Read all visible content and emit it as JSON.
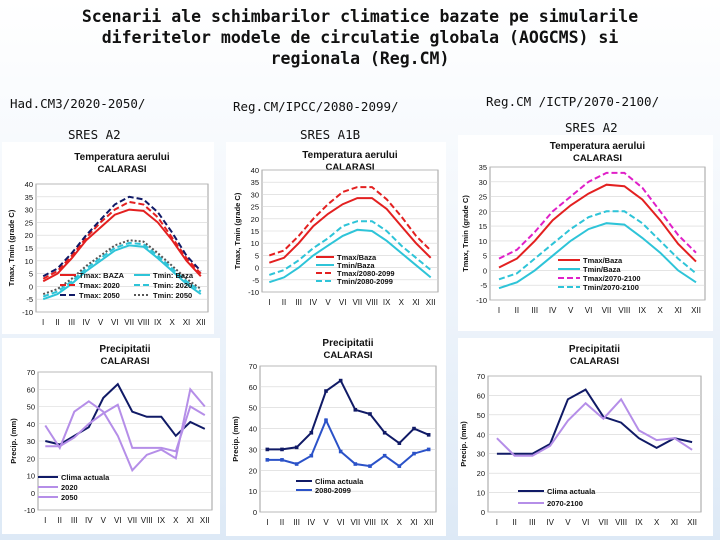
{
  "title_lines": [
    "Scenarii ale schimbarilor climatice bazate pe simularile",
    "diferitelor modele de circulatie globala (AOGCMS) si",
    "regionala (Reg.CM)"
  ],
  "columns": [
    {
      "model": "Had.CM3/2020-2050/",
      "scenario": "SRES A2"
    },
    {
      "model": "Reg.CM/IPCC/2080-2099/",
      "scenario": "SRES A1B"
    },
    {
      "model": "Reg.CM /ICTP/2070-2100/",
      "scenario": "SRES A2"
    }
  ],
  "colors": {
    "red": "#e32020",
    "cyan": "#2ec4d8",
    "navy": "#101a66",
    "blue": "#2b52c8",
    "violet": "#b58ee8",
    "gray": "#555555"
  },
  "chart_data": [
    {
      "type": "line",
      "panel": "temp1",
      "title": "Temperatura aerului",
      "subtitle": "CALARASI",
      "ylabel": "Tmax, Tmin (grade C)",
      "ylim": [
        -10,
        40
      ],
      "yticks": [
        -10,
        -5,
        0,
        5,
        10,
        15,
        20,
        25,
        30,
        35,
        40
      ],
      "categories": [
        "I",
        "II",
        "III",
        "IV",
        "V",
        "VI",
        "VII",
        "VIII",
        "IX",
        "X",
        "XI",
        "XII"
      ],
      "series": [
        {
          "name": "Tmax: BAZA",
          "color": "red",
          "dash": "solid",
          "values": [
            2,
            5,
            11,
            18,
            23,
            28,
            30,
            29.5,
            25,
            18,
            10,
            4
          ]
        },
        {
          "name": "Tmax: 2020",
          "color": "red",
          "dash": "dashed",
          "values": [
            3,
            6,
            12,
            19,
            25,
            30,
            33,
            32,
            27,
            19,
            11,
            5
          ]
        },
        {
          "name": "Tmax: 2050",
          "color": "navy",
          "dash": "dashed",
          "values": [
            4,
            7,
            13,
            20,
            26,
            32,
            35,
            34,
            29,
            21,
            12,
            6
          ]
        },
        {
          "name": "Tmin: Baza",
          "color": "cyan",
          "dash": "solid",
          "values": [
            -5,
            -3,
            1,
            6,
            10,
            14,
            16,
            15.5,
            11,
            6,
            1,
            -3
          ]
        },
        {
          "name": "Tmin: 2020",
          "color": "cyan",
          "dash": "dashed",
          "values": [
            -4,
            -2,
            2,
            7,
            11,
            15,
            17,
            16.5,
            12,
            7,
            2,
            -2
          ]
        },
        {
          "name": "Tmin: 2050",
          "color": "gray",
          "dash": "dotted",
          "values": [
            -3,
            -1,
            3,
            8,
            12,
            16,
            18,
            17.5,
            13,
            8,
            3,
            -1
          ]
        }
      ]
    },
    {
      "type": "line",
      "panel": "temp2",
      "title": "Temperatura aerului",
      "subtitle": "CALARASI",
      "ylabel": "Tmax, Tmin (grade C)",
      "ylim": [
        -10,
        40
      ],
      "yticks": [
        -10,
        -5,
        0,
        5,
        10,
        15,
        20,
        25,
        30,
        35,
        40
      ],
      "categories": [
        "I",
        "II",
        "III",
        "IV",
        "V",
        "VI",
        "VII",
        "VIII",
        "IX",
        "X",
        "XI",
        "XII"
      ],
      "series": [
        {
          "name": "Tmax/Baza",
          "color": "red",
          "dash": "solid",
          "values": [
            2,
            4,
            10,
            17,
            22,
            26,
            28.5,
            28.5,
            24,
            17,
            10,
            4
          ]
        },
        {
          "name": "Tmin/Baza",
          "color": "cyan",
          "dash": "solid",
          "values": [
            -6,
            -4,
            0,
            5,
            9,
            13,
            15.5,
            15,
            11,
            6,
            1,
            -4
          ]
        },
        {
          "name": "Tmax/2080-2099",
          "color": "red",
          "dash": "dashed",
          "values": [
            5,
            7,
            13,
            20,
            26,
            31,
            33,
            33,
            28,
            21,
            13,
            7
          ]
        },
        {
          "name": "Tmin/2080-2099",
          "color": "cyan",
          "dash": "dashed",
          "values": [
            -3,
            -1,
            3,
            8,
            12,
            17,
            19,
            19,
            15,
            9,
            4,
            -1
          ]
        }
      ]
    },
    {
      "type": "line",
      "panel": "temp3",
      "title": "Temperatura aerului",
      "subtitle": "CALARASI",
      "ylabel": "Tmax, Tmin (grade C)",
      "ylim": [
        -10,
        35
      ],
      "yticks": [
        -10,
        -5,
        0,
        5,
        10,
        15,
        20,
        25,
        30,
        35
      ],
      "categories": [
        "I",
        "II",
        "III",
        "IV",
        "V",
        "VI",
        "VII",
        "VIII",
        "IX",
        "X",
        "XI",
        "XII"
      ],
      "series": [
        {
          "name": "Tmax/Baza",
          "color": "red",
          "dash": "solid",
          "values": [
            1,
            4,
            10,
            17,
            22,
            26,
            29,
            28.5,
            24,
            17,
            9,
            3
          ]
        },
        {
          "name": "Tmin/Baza",
          "color": "cyan",
          "dash": "solid",
          "values": [
            -6,
            -4,
            0,
            5,
            10,
            14,
            16,
            15.5,
            11,
            6,
            0,
            -4
          ]
        },
        {
          "name": "Tmax/2070-2100",
          "color": "magenta",
          "dash": "dashed",
          "values": [
            4,
            7,
            13,
            20,
            25,
            30,
            33,
            33,
            28,
            20,
            12,
            6
          ]
        },
        {
          "name": "Tmin/2070-2100",
          "color": "cyan",
          "dash": "dashed",
          "values": [
            -3,
            -1,
            4,
            9,
            14,
            18,
            20,
            20,
            16,
            10,
            4,
            -1
          ]
        }
      ]
    },
    {
      "type": "line",
      "panel": "prec1",
      "title": "Precipitatii",
      "subtitle": "CALARASI",
      "ylabel": "Precip. (mm)",
      "ylim": [
        -10,
        70
      ],
      "yticks": [
        -10,
        0,
        10,
        20,
        30,
        40,
        50,
        60,
        70
      ],
      "categories": [
        "I",
        "II",
        "III",
        "IV",
        "V",
        "VI",
        "VII",
        "VIII",
        "IX",
        "X",
        "XI",
        "XII"
      ],
      "series": [
        {
          "name": "Clima actuala",
          "color": "navy",
          "dash": "solid",
          "values": [
            30,
            28,
            33,
            38,
            55,
            63,
            47,
            44,
            44,
            33,
            41,
            37
          ]
        },
        {
          "name": "2020",
          "color": "violet",
          "dash": "solid",
          "values": [
            27,
            27,
            32,
            40,
            46,
            51,
            26,
            26,
            26,
            24,
            50,
            45
          ]
        },
        {
          "name": "2050",
          "color": "violet",
          "dash": "solid",
          "values": [
            39,
            26,
            47,
            53,
            47,
            33,
            13,
            22,
            25,
            20,
            60,
            50
          ]
        }
      ]
    },
    {
      "type": "line",
      "panel": "prec2",
      "title": "Precipitatii",
      "subtitle": "CALARASI",
      "ylabel": "Precip. (mm)",
      "ylim": [
        0,
        70
      ],
      "yticks": [
        0,
        10,
        20,
        30,
        40,
        50,
        60,
        70
      ],
      "categories": [
        "I",
        "II",
        "III",
        "IV",
        "V",
        "VI",
        "VII",
        "VIII",
        "IX",
        "X",
        "XI",
        "XII"
      ],
      "series": [
        {
          "name": "Clima actuala",
          "color": "navy",
          "dash": "solid",
          "marker": true,
          "values": [
            30,
            30,
            31,
            38,
            58,
            63,
            49,
            47,
            38,
            33,
            40,
            37
          ]
        },
        {
          "name": "2080-2099",
          "color": "blue",
          "dash": "solid",
          "marker": true,
          "values": [
            25,
            25,
            23,
            27,
            44,
            29,
            23,
            22,
            27,
            22,
            28,
            30
          ]
        }
      ]
    },
    {
      "type": "line",
      "panel": "prec3",
      "title": "Precipitatii",
      "subtitle": "CALARASI",
      "ylabel": "Precip. (mm)",
      "ylim": [
        0,
        70
      ],
      "yticks": [
        0,
        10,
        20,
        30,
        40,
        50,
        60,
        70
      ],
      "categories": [
        "I",
        "II",
        "III",
        "IV",
        "V",
        "VI",
        "VII",
        "VIII",
        "IX",
        "X",
        "XI",
        "XII"
      ],
      "series": [
        {
          "name": "Clima actuala",
          "color": "navy",
          "dash": "solid",
          "values": [
            30,
            30,
            30,
            35,
            58,
            63,
            49,
            46,
            38,
            33,
            38,
            36
          ]
        },
        {
          "name": "2070-2100",
          "color": "violet",
          "dash": "solid",
          "values": [
            38,
            29,
            29,
            34,
            47,
            56,
            48,
            58,
            42,
            37,
            38,
            32
          ]
        }
      ]
    }
  ]
}
